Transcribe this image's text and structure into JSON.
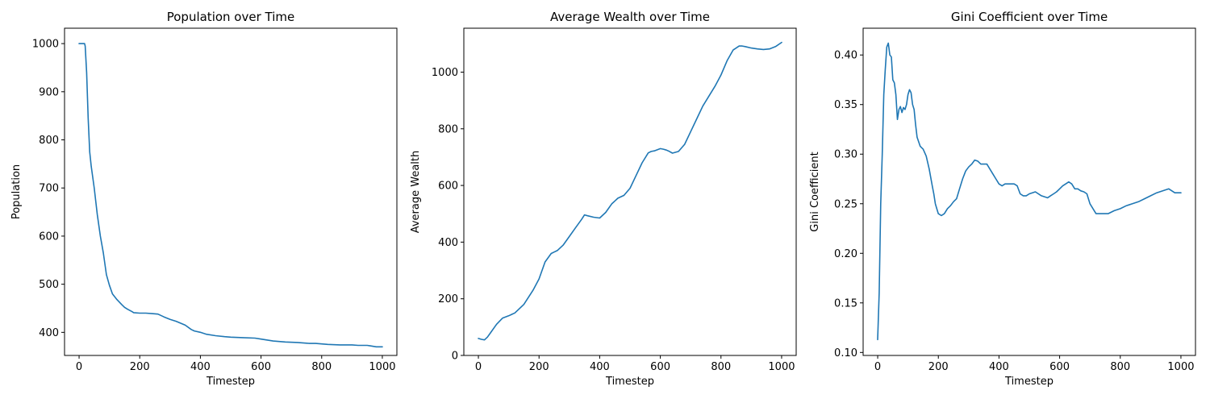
{
  "figure": {
    "series_color": "#1f77b4"
  },
  "chart_data": [
    {
      "type": "line",
      "title": "Population over Time",
      "xlabel": "Timestep",
      "ylabel": "Population",
      "xlim": [
        -48,
        1048
      ],
      "ylim": [
        352,
        1032
      ],
      "xticks": [
        0,
        200,
        400,
        600,
        800,
        1000
      ],
      "yticks": [
        400,
        500,
        600,
        700,
        800,
        900,
        1000
      ],
      "grid": false,
      "series": [
        {
          "x": [
            0,
            10,
            18,
            20,
            25,
            30,
            35,
            40,
            50,
            60,
            70,
            80,
            90,
            100,
            110,
            125,
            140,
            150,
            160,
            175,
            180,
            200,
            220,
            240,
            260,
            280,
            300,
            320,
            350,
            370,
            380,
            400,
            420,
            450,
            480,
            500,
            540,
            580,
            600,
            640,
            680,
            720,
            760,
            780,
            800,
            820,
            860,
            900,
            920,
            950,
            960,
            980,
            1000
          ],
          "y": [
            1000,
            1000,
            1000,
            995,
            940,
            845,
            775,
            745,
            700,
            645,
            600,
            565,
            520,
            498,
            480,
            468,
            458,
            452,
            448,
            443,
            441,
            440,
            440,
            439,
            438,
            432,
            427,
            423,
            415,
            406,
            403,
            400,
            396,
            393,
            391,
            390,
            389,
            388,
            386,
            382,
            380,
            379,
            377,
            377,
            376,
            375,
            374,
            374,
            373,
            373,
            372,
            370,
            370
          ]
        }
      ]
    },
    {
      "type": "line",
      "title": "Average Wealth over Time",
      "xlabel": "Timestep",
      "ylabel": "Average Wealth",
      "xlim": [
        -48,
        1048
      ],
      "ylim": [
        0,
        1155
      ],
      "xticks": [
        0,
        200,
        400,
        600,
        800,
        1000
      ],
      "yticks": [
        0,
        200,
        400,
        600,
        800,
        1000
      ],
      "grid": false,
      "series": [
        {
          "x": [
            0,
            10,
            20,
            30,
            40,
            60,
            80,
            100,
            120,
            130,
            150,
            180,
            200,
            220,
            240,
            250,
            260,
            280,
            300,
            320,
            340,
            350,
            360,
            380,
            400,
            420,
            440,
            460,
            480,
            500,
            520,
            540,
            560,
            570,
            580,
            600,
            610,
            620,
            630,
            640,
            660,
            680,
            700,
            720,
            740,
            760,
            780,
            800,
            820,
            840,
            850,
            860,
            870,
            880,
            900,
            920,
            940,
            960,
            980,
            1000
          ],
          "y": [
            60,
            57,
            55,
            65,
            80,
            110,
            132,
            140,
            150,
            160,
            180,
            230,
            270,
            330,
            360,
            365,
            370,
            390,
            420,
            450,
            480,
            496,
            493,
            488,
            485,
            505,
            535,
            555,
            565,
            590,
            635,
            680,
            715,
            720,
            722,
            730,
            728,
            725,
            720,
            714,
            720,
            745,
            790,
            835,
            880,
            915,
            950,
            990,
            1040,
            1078,
            1085,
            1092,
            1092,
            1090,
            1085,
            1082,
            1080,
            1082,
            1090,
            1105
          ]
        }
      ]
    },
    {
      "type": "line",
      "title": "Gini Coefficient over Time",
      "xlabel": "Timestep",
      "ylabel": "Gini Coefficient",
      "xlim": [
        -48,
        1048
      ],
      "ylim": [
        0.097,
        0.427
      ],
      "xticks": [
        0,
        200,
        400,
        600,
        800,
        1000
      ],
      "yticks": [
        0.1,
        0.15,
        0.2,
        0.25,
        0.3,
        0.35,
        0.4
      ],
      "grid": false,
      "series": [
        {
          "x": [
            0,
            5,
            10,
            15,
            20,
            25,
            30,
            35,
            40,
            45,
            50,
            55,
            60,
            65,
            70,
            75,
            80,
            85,
            90,
            95,
            100,
            105,
            110,
            115,
            120,
            125,
            130,
            140,
            150,
            160,
            170,
            180,
            185,
            190,
            195,
            200,
            210,
            220,
            230,
            240,
            245,
            250,
            260,
            270,
            280,
            290,
            300,
            310,
            320,
            330,
            340,
            350,
            360,
            370,
            380,
            390,
            400,
            410,
            420,
            430,
            440,
            450,
            460,
            470,
            480,
            490,
            500,
            520,
            540,
            560,
            570,
            580,
            590,
            600,
            610,
            620,
            630,
            640,
            650,
            660,
            670,
            680,
            690,
            700,
            720,
            740,
            760,
            780,
            800,
            820,
            840,
            860,
            880,
            900,
            920,
            940,
            960,
            980,
            1000
          ],
          "y": [
            0.113,
            0.16,
            0.25,
            0.3,
            0.36,
            0.385,
            0.408,
            0.412,
            0.4,
            0.398,
            0.375,
            0.372,
            0.36,
            0.335,
            0.345,
            0.348,
            0.342,
            0.347,
            0.345,
            0.35,
            0.36,
            0.365,
            0.362,
            0.35,
            0.345,
            0.33,
            0.317,
            0.308,
            0.305,
            0.298,
            0.285,
            0.268,
            0.26,
            0.25,
            0.245,
            0.24,
            0.238,
            0.24,
            0.245,
            0.248,
            0.25,
            0.252,
            0.255,
            0.265,
            0.275,
            0.283,
            0.287,
            0.29,
            0.294,
            0.293,
            0.29,
            0.29,
            0.29,
            0.285,
            0.28,
            0.275,
            0.27,
            0.268,
            0.27,
            0.27,
            0.27,
            0.27,
            0.268,
            0.26,
            0.258,
            0.258,
            0.26,
            0.262,
            0.258,
            0.256,
            0.258,
            0.26,
            0.262,
            0.265,
            0.268,
            0.27,
            0.272,
            0.27,
            0.265,
            0.265,
            0.263,
            0.262,
            0.26,
            0.25,
            0.24,
            0.24,
            0.24,
            0.243,
            0.245,
            0.248,
            0.25,
            0.252,
            0.255,
            0.258,
            0.261,
            0.263,
            0.265,
            0.261,
            0.261
          ]
        }
      ]
    }
  ]
}
